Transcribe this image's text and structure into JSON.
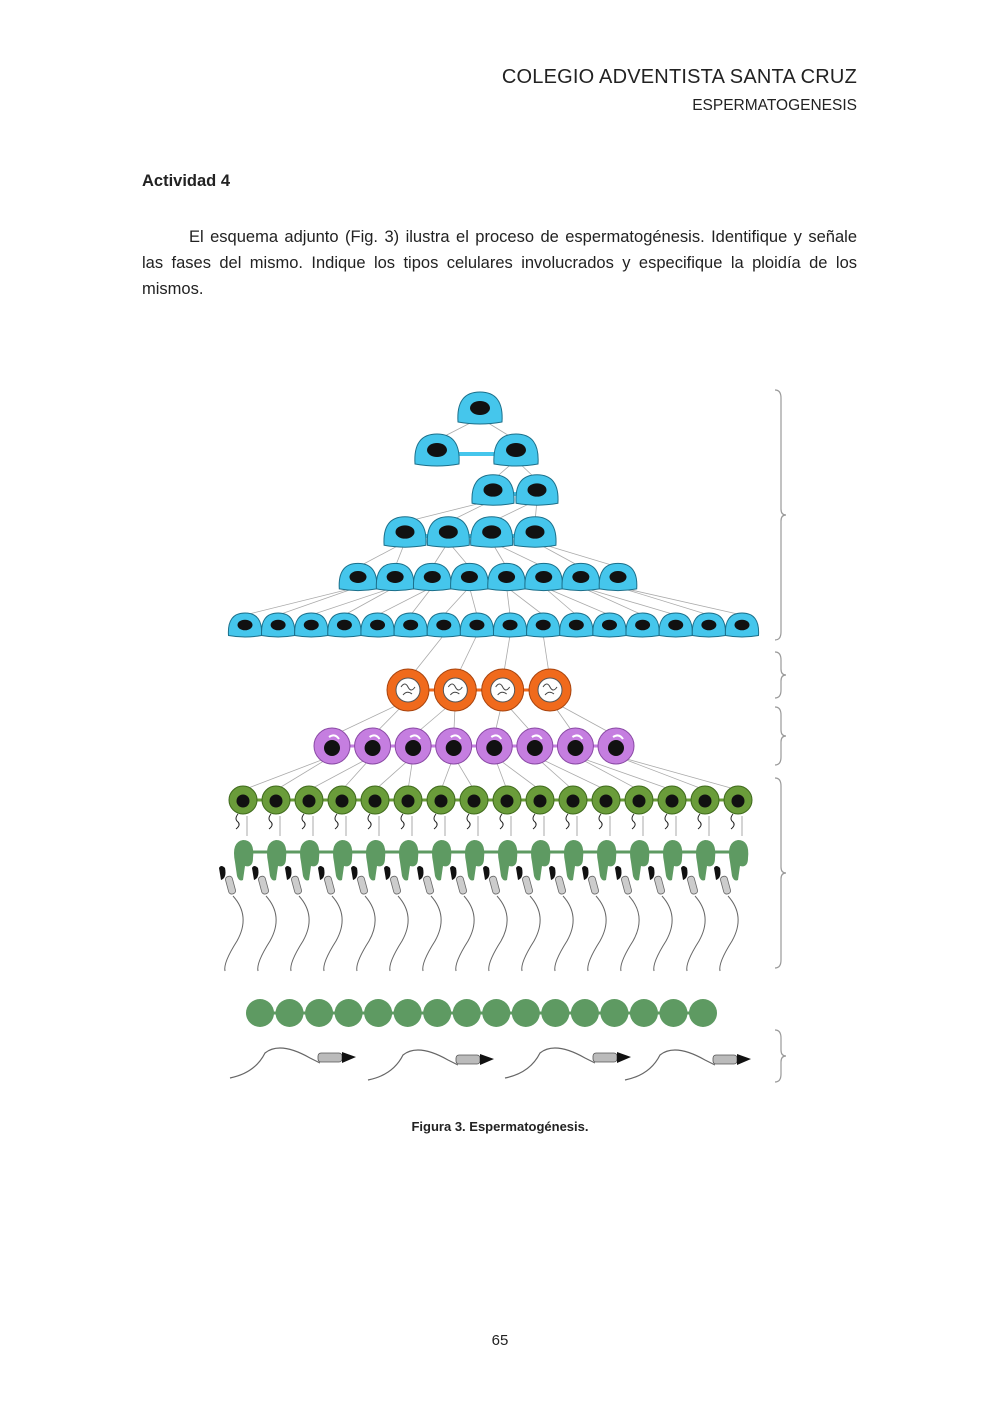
{
  "header": {
    "school": "COLEGIO ADVENTISTA SANTA CRUZ",
    "subject": "ESPERMATOGENESIS"
  },
  "activity": {
    "title": "Actividad 4",
    "text": "El esquema adjunto (Fig. 3) ilustra el proceso de espermatogénesis. Identifique y señale las fases del mismo. Indique los tipos celulares involucrados y especifique la ploidía de los mismos."
  },
  "figure": {
    "caption": "Figura 3. Espermatogénesis.",
    "colors": {
      "spermatogonia": "#45c6ec",
      "primary": "#f06a1c",
      "secondary": "#c57ee0",
      "spermatid": "#6a9c3a",
      "residual": "#5e9a62",
      "nucleus": "#111111",
      "brace": "#999999"
    }
  },
  "footer": {
    "page_number": "65"
  }
}
